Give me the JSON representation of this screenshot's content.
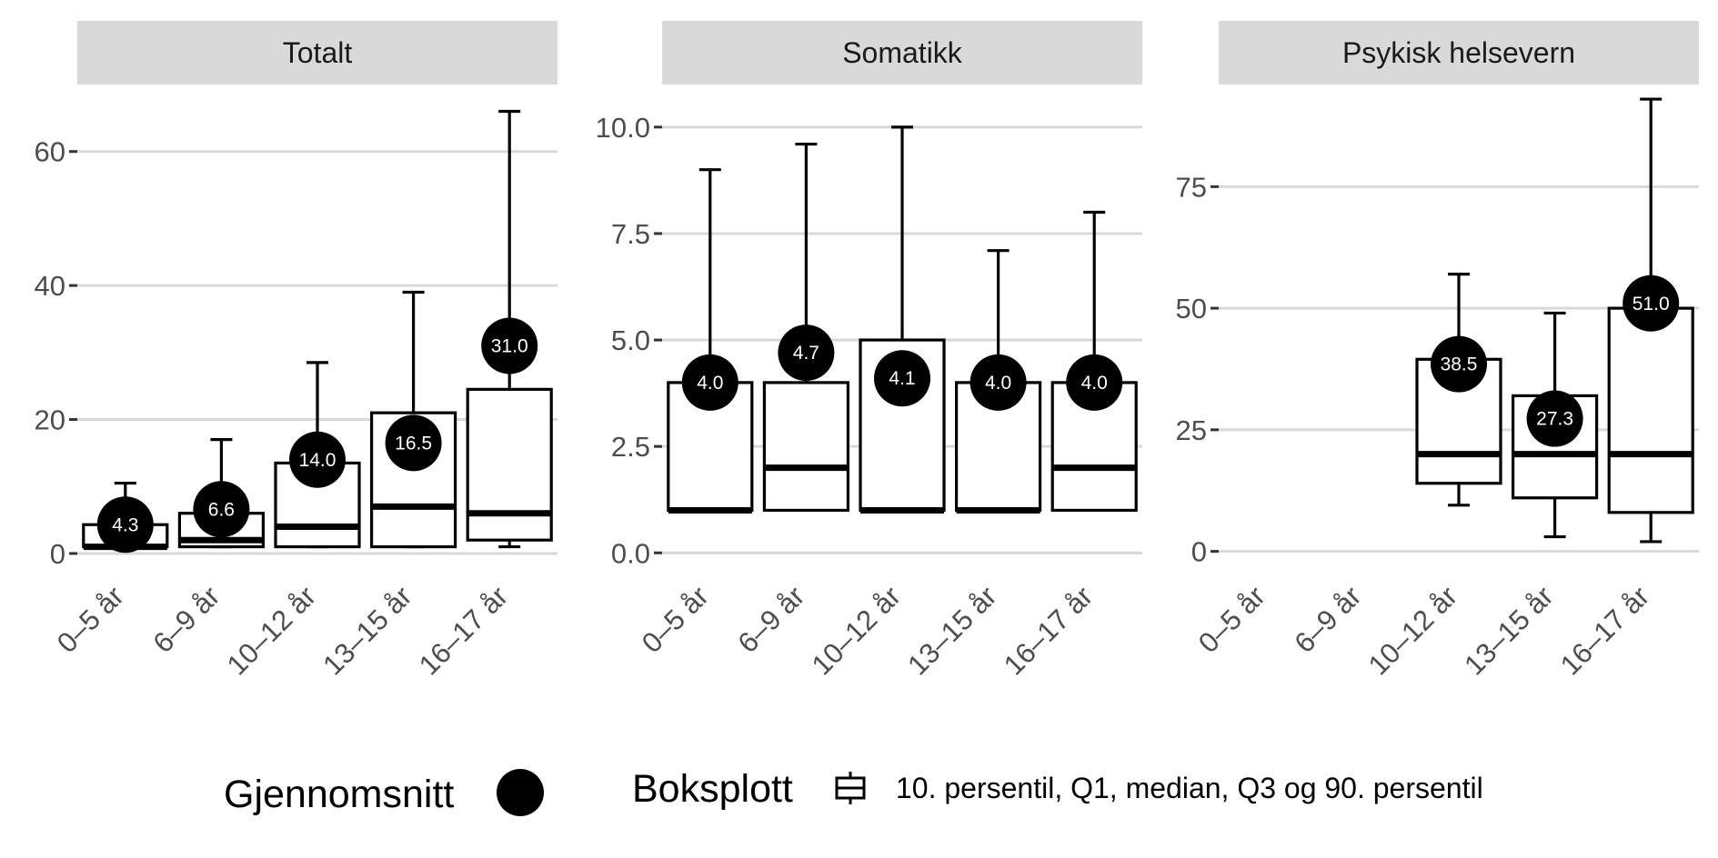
{
  "chart_data": {
    "type": "boxplot",
    "categories": [
      "0–5 år",
      "6–9 år",
      "10–12 år",
      "13–15 år",
      "16–17 år"
    ],
    "panels": [
      {
        "title": "Totalt",
        "ylim": [
          -1.5,
          70
        ],
        "yticks": [
          0,
          20,
          40,
          60
        ],
        "ytick_labels": [
          "0",
          "20",
          "40",
          "60"
        ],
        "boxes": [
          {
            "p10": 1,
            "q1": 1,
            "median": 1,
            "q3": 4.3,
            "p90": 10.5,
            "mean": 4.3,
            "mean_label": "4.3"
          },
          {
            "p10": 1,
            "q1": 1,
            "median": 2,
            "q3": 6,
            "p90": 17,
            "mean": 6.6,
            "mean_label": "6.6"
          },
          {
            "p10": 1,
            "q1": 1,
            "median": 4,
            "q3": 13.5,
            "p90": 28.5,
            "mean": 14.0,
            "mean_label": "14.0"
          },
          {
            "p10": 1,
            "q1": 1,
            "median": 7,
            "q3": 21,
            "p90": 39,
            "mean": 16.5,
            "mean_label": "16.5"
          },
          {
            "p10": 1,
            "q1": 2,
            "median": 6,
            "q3": 24.5,
            "p90": 66,
            "mean": 31.0,
            "mean_label": "31.0"
          }
        ]
      },
      {
        "title": "Somatikk",
        "ylim": [
          -0.25,
          11
        ],
        "yticks": [
          0,
          2.5,
          5,
          7.5,
          10
        ],
        "ytick_labels": [
          "0.0",
          "2.5",
          "5.0",
          "7.5",
          "10.0"
        ],
        "boxes": [
          {
            "p10": 1,
            "q1": 1,
            "median": 1,
            "q3": 4,
            "p90": 9,
            "mean": 4.0,
            "mean_label": "4.0"
          },
          {
            "p10": 1,
            "q1": 1,
            "median": 2,
            "q3": 4,
            "p90": 9.6,
            "mean": 4.7,
            "mean_label": "4.7"
          },
          {
            "p10": 1,
            "q1": 1,
            "median": 1,
            "q3": 5,
            "p90": 10,
            "mean": 4.1,
            "mean_label": "4.1"
          },
          {
            "p10": 1,
            "q1": 1,
            "median": 1,
            "q3": 4,
            "p90": 7.1,
            "mean": 4.0,
            "mean_label": "4.0"
          },
          {
            "p10": 1,
            "q1": 1,
            "median": 2,
            "q3": 4,
            "p90": 8,
            "mean": 4.0,
            "mean_label": "4.0"
          }
        ]
      },
      {
        "title": "Psykisk helsevern",
        "ylim": [
          -2.5,
          96
        ],
        "yticks": [
          0,
          25,
          50,
          75
        ],
        "ytick_labels": [
          "0",
          "25",
          "50",
          "75"
        ],
        "boxes": [
          null,
          null,
          {
            "p10": 9.5,
            "q1": 14,
            "median": 20,
            "q3": 39.5,
            "p90": 57,
            "mean": 38.5,
            "mean_label": "38.5"
          },
          {
            "p10": 3,
            "q1": 11,
            "median": 20,
            "q3": 32,
            "p90": 49,
            "mean": 27.3,
            "mean_label": "27.3"
          },
          {
            "p10": 2,
            "q1": 8,
            "median": 20,
            "q3": 50,
            "p90": 93,
            "mean": 51.0,
            "mean_label": "51.0"
          }
        ]
      }
    ],
    "legend": {
      "mean_title": "Gjennomsnitt",
      "box_title": "Boksplott",
      "box_description": "10. persentil, Q1, median, Q3 og 90. persentil"
    }
  }
}
